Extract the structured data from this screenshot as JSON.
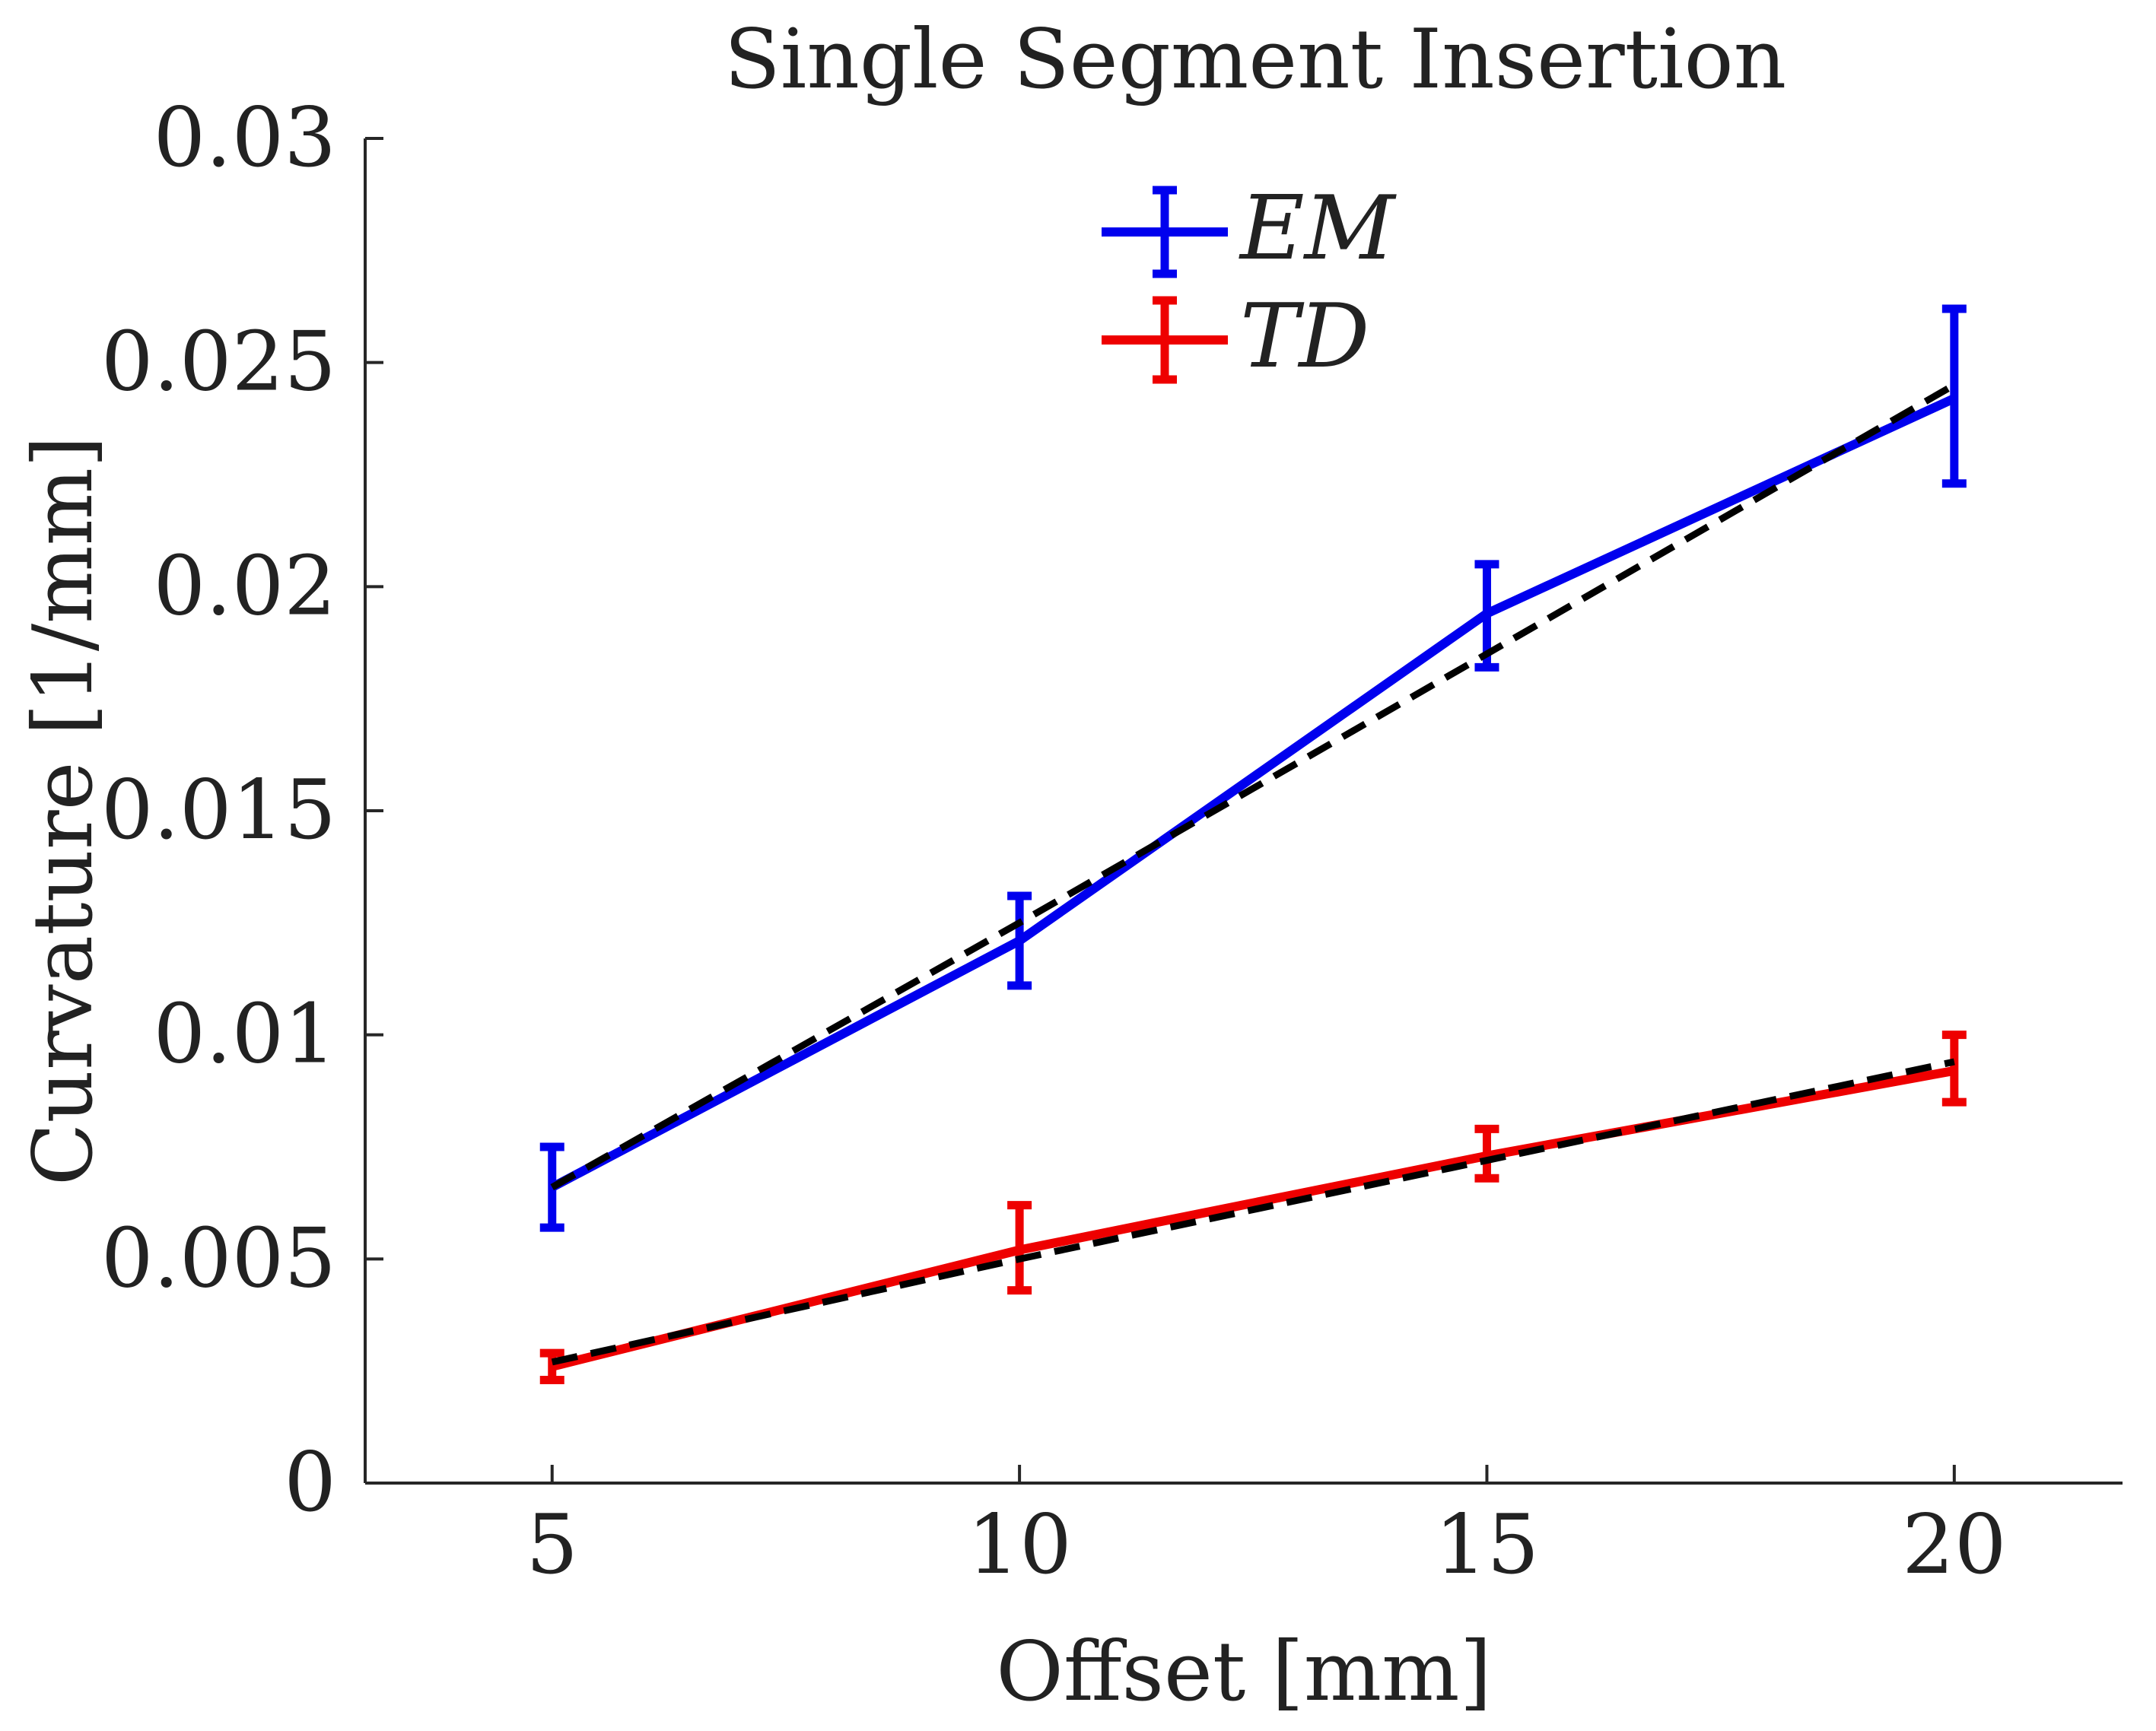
{
  "chart_data": {
    "type": "line",
    "title": "Single Segment Insertion",
    "xlabel": "Offset [mm]",
    "ylabel": "Curvature [1/mm]",
    "xlim": [
      3,
      21.8
    ],
    "ylim": [
      0,
      0.03
    ],
    "xticks": [
      5,
      10,
      15,
      20
    ],
    "xtick_labels": [
      "5",
      "10",
      "15",
      "20"
    ],
    "yticks": [
      0,
      0.005,
      0.01,
      0.015,
      0.02,
      0.025,
      0.03
    ],
    "ytick_labels": [
      "0",
      "0.005",
      "0.01",
      "0.015",
      "0.02",
      "0.025",
      "0.03"
    ],
    "x": [
      5,
      10,
      15,
      20
    ],
    "series": [
      {
        "name": "EM",
        "color": "#0000ee",
        "values": [
          0.0066,
          0.0121,
          0.0194,
          0.0242
        ],
        "err_low": [
          0.0057,
          0.0111,
          0.0182,
          0.0223
        ],
        "err_high": [
          0.0075,
          0.0131,
          0.0205,
          0.0262
        ],
        "fit": [
          0.0066,
          0.0125,
          0.0185,
          0.0245
        ]
      },
      {
        "name": "TD",
        "color": "#ee0000",
        "values": [
          0.0026,
          0.0052,
          0.0073,
          0.0092
        ],
        "err_low": [
          0.0023,
          0.0043,
          0.0068,
          0.0085
        ],
        "err_high": [
          0.0029,
          0.0062,
          0.0079,
          0.01
        ],
        "fit": [
          0.0027,
          0.005,
          0.0072,
          0.0094
        ]
      }
    ],
    "fit_line_style": "dashed",
    "fit_line_color": "#000000",
    "legend_position": "top-center",
    "grid": false
  }
}
